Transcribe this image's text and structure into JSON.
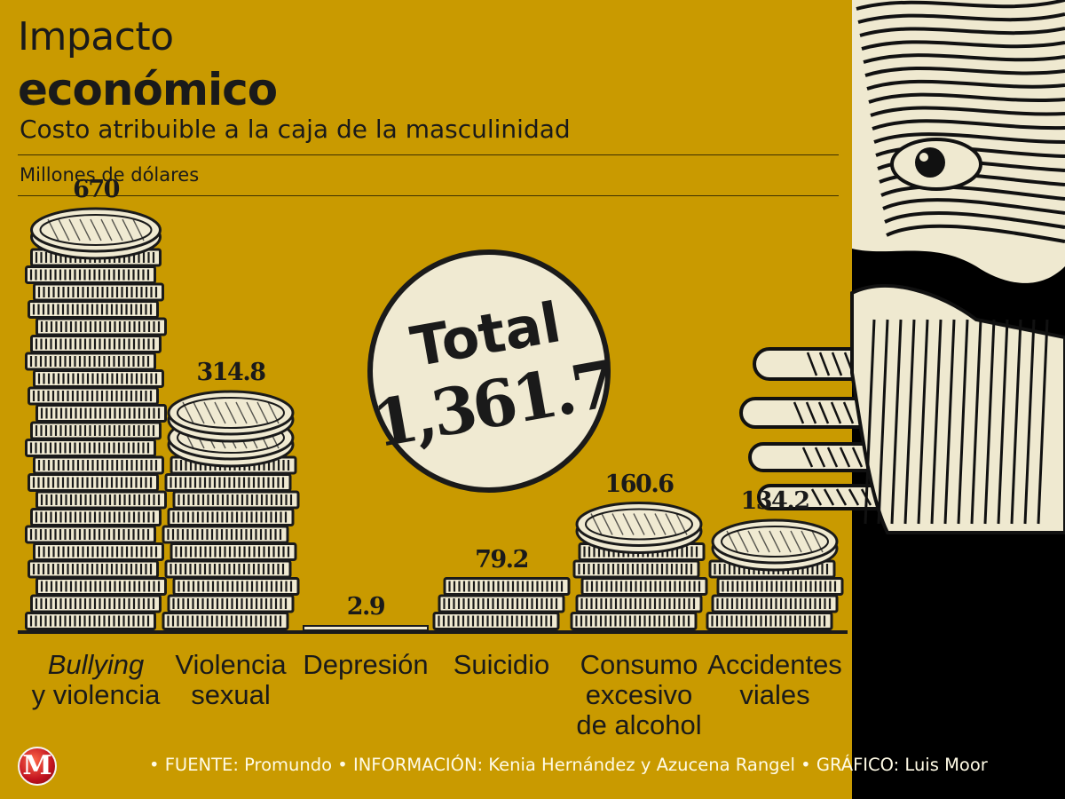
{
  "header": {
    "title_line1": "Impacto",
    "title_line2": "económico",
    "subtitle": "Costo atribuible a la caja de la masculinidad",
    "units": "Millones de dólares"
  },
  "total": {
    "label": "Total",
    "value": "1,361.7"
  },
  "chart_data": {
    "type": "bar",
    "categories": [
      "Bullying y violencia",
      "Violencia sexual",
      "Depresión",
      "Suicidio",
      "Consumo excesivo de alcohol",
      "Accidentes viales"
    ],
    "values": [
      670,
      314.8,
      2.9,
      79.2,
      160.6,
      134.2
    ],
    "value_labels": [
      "670",
      "314.8",
      "2.9",
      "79.2",
      "160.6",
      "134.2"
    ],
    "category_labels": [
      [
        "Bullying",
        "y violencia"
      ],
      [
        "Violencia",
        "sexual"
      ],
      [
        "Depresión"
      ],
      [
        "Suicidio"
      ],
      [
        "Consumo",
        "excesivo",
        "de alcohol"
      ],
      [
        "Accidentes",
        "viales"
      ]
    ],
    "title": "Costo atribuible a la caja de la masculinidad",
    "ylabel": "Millones de dólares",
    "ylim": [
      0,
      670
    ],
    "grid": false,
    "colors": {
      "background": "#c99a00",
      "coin": "#f0ead2",
      "ink": "#1a1a1a",
      "panel": "#000000"
    }
  },
  "footer": {
    "logo_letter": "M",
    "text": "• FUENTE: Promundo  • INFORMACIÓN: Kenia Hernández y Azucena Rangel  •  GRÁFICO: Luis Moor"
  }
}
